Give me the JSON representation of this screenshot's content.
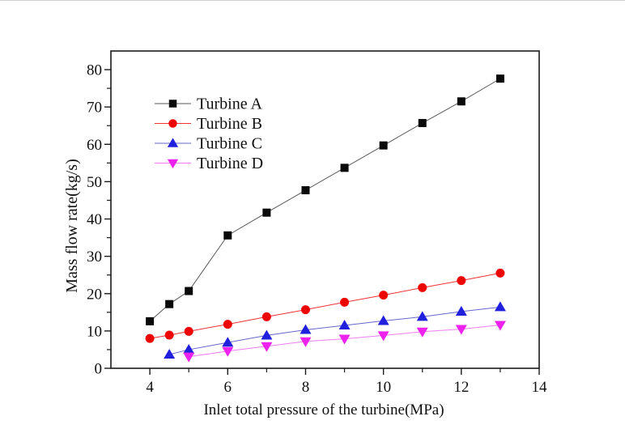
{
  "figure": {
    "background_color": "#ffffff",
    "frame_color": "#1a1a1a"
  },
  "chart_data": {
    "type": "line",
    "title": "",
    "xlabel": "Inlet total pressure of the turbine(MPa)",
    "ylabel": "Mass flow rate(kg/s)",
    "xlim": [
      3,
      14
    ],
    "ylim": [
      0,
      85
    ],
    "grid": false,
    "legend_position": "upper-left",
    "x_major_ticks": [
      4,
      6,
      8,
      10,
      12,
      14
    ],
    "x_minor_ticks": [
      5,
      7,
      9,
      11,
      13
    ],
    "y_major_ticks": [
      0,
      10,
      20,
      30,
      40,
      50,
      60,
      70,
      80
    ],
    "y_minor_ticks": [
      5,
      15,
      25,
      35,
      45,
      55,
      65,
      75
    ],
    "x_tick_labels": [
      "4",
      "6",
      "8",
      "10",
      "12",
      "14"
    ],
    "y_tick_labels": [
      "0",
      "10",
      "20",
      "30",
      "40",
      "50",
      "60",
      "70",
      "80"
    ],
    "series": [
      {
        "name": "Turbine A",
        "marker": "square",
        "marker_color": "#0a0a0a",
        "line_color": "#595959",
        "x": [
          4,
          4.5,
          5,
          6,
          7,
          8,
          9,
          10,
          11,
          12,
          13
        ],
        "y": [
          12.6,
          17.2,
          20.7,
          35.6,
          41.7,
          47.7,
          53.7,
          59.7,
          65.7,
          71.5,
          77.6
        ]
      },
      {
        "name": "Turbine B",
        "marker": "circle",
        "marker_color": "#ee0202",
        "line_color": "#ee3333",
        "x": [
          4,
          4.5,
          5,
          6,
          7,
          8,
          9,
          10,
          11,
          12,
          13
        ],
        "y": [
          8.0,
          8.9,
          9.9,
          11.8,
          13.8,
          15.7,
          17.7,
          19.6,
          21.6,
          23.5,
          25.5
        ]
      },
      {
        "name": "Turbine C",
        "marker": "triangle-up",
        "marker_color": "#2020dd",
        "line_color": "#6666cc",
        "x": [
          4.5,
          5,
          6,
          7,
          8,
          9,
          10,
          11,
          12,
          13
        ],
        "y": [
          3.7,
          5.0,
          6.9,
          8.8,
          10.3,
          11.5,
          12.7,
          13.8,
          15.2,
          16.4
        ]
      },
      {
        "name": "Turbine D",
        "marker": "triangle-down",
        "marker_color": "#ee22ee",
        "line_color": "#f07df0",
        "x": [
          5,
          6,
          7,
          8,
          9,
          10,
          11,
          12,
          13
        ],
        "y": [
          3.1,
          4.6,
          5.9,
          7.2,
          7.9,
          8.8,
          9.8,
          10.5,
          11.6
        ]
      }
    ]
  }
}
